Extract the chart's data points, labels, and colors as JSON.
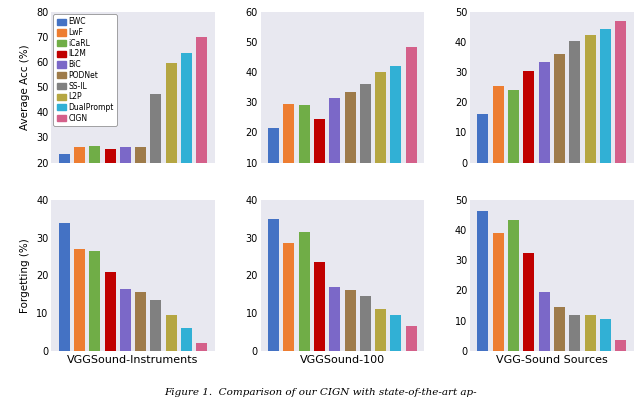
{
  "methods": [
    "EWC",
    "LwF",
    "iCaRL",
    "IL2M",
    "BiC",
    "PODNet",
    "SS-IL",
    "L2P",
    "DualPrompt",
    "CIGN"
  ],
  "colors": [
    "#4472c4",
    "#ed7d31",
    "#70ad47",
    "#c00000",
    "#7b68c8",
    "#9e7b4a",
    "#808080",
    "#b5a642",
    "#31b0d5",
    "#d4608a"
  ],
  "avg_acc": {
    "VGGSound-Instruments": [
      23.5,
      26.0,
      26.5,
      25.5,
      26.0,
      26.0,
      47.5,
      59.5,
      63.5,
      70.0
    ],
    "VGGSound-100": [
      21.5,
      29.5,
      29.0,
      24.5,
      31.5,
      33.5,
      36.0,
      40.0,
      42.0,
      48.5
    ],
    "VGG-Sound Sources": [
      16.0,
      25.5,
      24.0,
      30.5,
      33.5,
      36.0,
      40.5,
      42.5,
      44.5,
      47.0
    ]
  },
  "forgetting": {
    "VGGSound-Instruments": [
      34.0,
      27.0,
      26.5,
      21.0,
      16.5,
      15.5,
      13.5,
      9.5,
      6.0,
      2.0
    ],
    "VGGSound-100": [
      35.0,
      28.5,
      31.5,
      23.5,
      17.0,
      16.0,
      14.5,
      11.0,
      9.5,
      6.5
    ],
    "VGG-Sound Sources": [
      46.5,
      39.0,
      43.5,
      32.5,
      19.5,
      14.5,
      12.0,
      12.0,
      10.5,
      3.5
    ]
  },
  "avg_acc_ylim_ins": [
    20,
    80
  ],
  "avg_acc_yticks_ins": [
    20,
    30,
    40,
    50,
    60,
    70,
    80
  ],
  "avg_acc_ylim_100": [
    10,
    60
  ],
  "avg_acc_yticks_100": [
    10,
    20,
    30,
    40,
    50,
    60
  ],
  "avg_acc_ylim_src": [
    0,
    50
  ],
  "avg_acc_yticks_src": [
    0,
    10,
    20,
    30,
    40,
    50
  ],
  "forgetting_ylim_ins": [
    0,
    40
  ],
  "forgetting_yticks_ins": [
    0,
    10,
    20,
    30,
    40
  ],
  "forgetting_ylim_100": [
    0,
    40
  ],
  "forgetting_yticks_100": [
    0,
    10,
    20,
    30,
    40
  ],
  "forgetting_ylim_src": [
    0,
    50
  ],
  "forgetting_yticks_src": [
    0,
    10,
    20,
    30,
    40,
    50
  ],
  "bg_color": "#e8e8f0",
  "caption": "Figure 1.  Comparison of our CIGN with state-of-the-art ap-"
}
